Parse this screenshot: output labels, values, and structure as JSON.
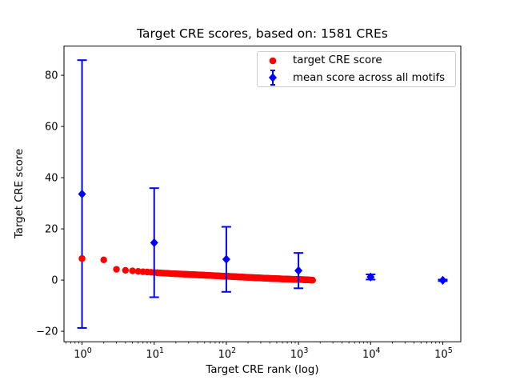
{
  "figure": {
    "background": "#ffffff",
    "axis_color": "#000000"
  },
  "chart_data": {
    "type": "scatter",
    "title": "Target CRE scores, based on: 1581 CREs",
    "xlabel": "Target CRE rank (log)",
    "ylabel": "Target CRE score",
    "x_scale": "log",
    "xlim_log10": [
      -0.25,
      5.25
    ],
    "ylim": [
      -24.1,
      91.4
    ],
    "x_ticks": {
      "base": "10",
      "exponents": [
        0,
        1,
        2,
        3,
        4,
        5
      ]
    },
    "y_ticks": [
      {
        "value": -20,
        "label": "−20"
      },
      {
        "value": 0,
        "label": "0"
      },
      {
        "value": 20,
        "label": "20"
      },
      {
        "value": 40,
        "label": "40"
      },
      {
        "value": 60,
        "label": "60"
      },
      {
        "value": 80,
        "label": "80"
      }
    ],
    "grid": false,
    "legend": {
      "position": "upper right"
    },
    "series": [
      {
        "name": "target CRE score",
        "kind": "scatter",
        "marker": "circle",
        "color": "#ff0000",
        "n_points": 1581,
        "anchor_points": [
          [
            1,
            8.4
          ],
          [
            2,
            7.9
          ],
          [
            3,
            4.2
          ],
          [
            4,
            3.8
          ],
          [
            5,
            3.6
          ],
          [
            6,
            3.4
          ],
          [
            7,
            3.25
          ],
          [
            8,
            3.15
          ],
          [
            9,
            3.05
          ],
          [
            10,
            2.95
          ],
          [
            13,
            2.75
          ],
          [
            16,
            2.6
          ],
          [
            20,
            2.45
          ],
          [
            26,
            2.3
          ],
          [
            33,
            2.15
          ],
          [
            42,
            2.0
          ],
          [
            55,
            1.85
          ],
          [
            70,
            1.7
          ],
          [
            90,
            1.55
          ],
          [
            120,
            1.38
          ],
          [
            160,
            1.2
          ],
          [
            220,
            1.0
          ],
          [
            300,
            0.82
          ],
          [
            420,
            0.62
          ],
          [
            600,
            0.45
          ],
          [
            800,
            0.33
          ],
          [
            1000,
            0.24
          ],
          [
            1200,
            0.15
          ],
          [
            1400,
            0.05
          ],
          [
            1581,
            -0.05
          ]
        ]
      },
      {
        "name": "mean score across all motifs",
        "kind": "errorbar",
        "marker": "diamond",
        "color": "#0000ff",
        "points": [
          {
            "x": 1,
            "mean": 33.6,
            "err": 52.3
          },
          {
            "x": 10,
            "mean": 14.6,
            "err": 21.3
          },
          {
            "x": 100,
            "mean": 8.1,
            "err": 12.7
          },
          {
            "x": 1000,
            "mean": 3.7,
            "err": 6.9
          },
          {
            "x": 10000,
            "mean": 1.2,
            "err": 1.0
          },
          {
            "x": 100000,
            "mean": -0.1,
            "err": 0.3
          }
        ]
      }
    ]
  }
}
